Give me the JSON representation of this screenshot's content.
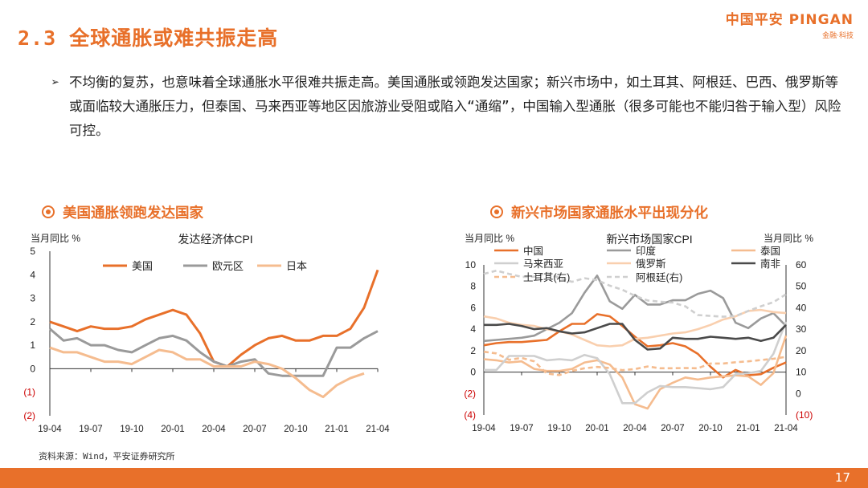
{
  "header": {
    "title": "2.3 全球通胀或难共振走高",
    "logo_main": "中国平安 PINGAN",
    "logo_sub": "金融·科技"
  },
  "body": {
    "bullet": "➢",
    "text": "不均衡的复苏，也意味着全球通胀水平很难共振走高。美国通胀或领跑发达国家；新兴市场中，如土耳其、阿根廷、巴西、俄罗斯等或面临较大通胀压力，但泰国、马来西亚等地区因旅游业受阻或陷入“通缩”，中国输入型通胀（很多可能也不能归咎于输入型）风险可控。"
  },
  "sections": {
    "left": "美国通胀领跑发达国家",
    "right": "新兴市场国家通胀水平出现分化"
  },
  "source": "资料来源：Wind，平安证券研究所",
  "footer": {
    "page": "17"
  },
  "colors": {
    "accent": "#e8702a",
    "grey": "#9a9a9a",
    "peach": "#f5bc8f",
    "dark": "#4a4a4a",
    "light_grey": "#cfcfcf",
    "light_peach": "#f9cfae"
  },
  "chart_data": [
    {
      "type": "line",
      "title": "发达经济体CPI",
      "ylabel": "当月同比 %",
      "ylim": [
        -2,
        5
      ],
      "yticks": [
        "5",
        "4",
        "3",
        "2",
        "1",
        "0",
        "(1)",
        "(2)"
      ],
      "xticks": [
        "19-04",
        "19-07",
        "19-10",
        "20-01",
        "20-04",
        "20-07",
        "20-10",
        "21-01",
        "21-04"
      ],
      "series": [
        {
          "name": "美国",
          "color": "#e8702a",
          "values": [
            2.0,
            1.8,
            1.6,
            1.8,
            1.7,
            1.7,
            1.8,
            2.1,
            2.3,
            2.5,
            2.3,
            1.5,
            0.3,
            0.1,
            0.6,
            1.0,
            1.3,
            1.4,
            1.2,
            1.2,
            1.4,
            1.4,
            1.7,
            2.6,
            4.2
          ]
        },
        {
          "name": "欧元区",
          "color": "#9a9a9a",
          "values": [
            1.7,
            1.2,
            1.3,
            1.0,
            1.0,
            0.8,
            0.7,
            1.0,
            1.3,
            1.4,
            1.2,
            0.7,
            0.3,
            0.1,
            0.3,
            0.4,
            -0.2,
            -0.3,
            -0.3,
            -0.3,
            -0.3,
            0.9,
            0.9,
            1.3,
            1.6
          ]
        },
        {
          "name": "日本",
          "color": "#f5bc8f",
          "values": [
            0.9,
            0.7,
            0.7,
            0.5,
            0.3,
            0.3,
            0.2,
            0.5,
            0.8,
            0.7,
            0.4,
            0.4,
            0.1,
            0.1,
            0.1,
            0.3,
            0.2,
            0.0,
            -0.4,
            -0.9,
            -1.2,
            -0.7,
            -0.4,
            -0.2,
            null
          ]
        }
      ]
    },
    {
      "type": "line",
      "title": "新兴市场国家CPI",
      "ylabel_left": "当月同比 %",
      "ylabel_right": "当月同比 %",
      "ylim_left": [
        -4,
        10
      ],
      "ylim_right": [
        -10,
        60
      ],
      "yticks_left": [
        "10",
        "8",
        "6",
        "4",
        "2",
        "0",
        "(2)",
        "(4)"
      ],
      "yticks_right": [
        "60",
        "50",
        "40",
        "30",
        "20",
        "10",
        "0",
        "(10)"
      ],
      "xticks": [
        "19-04",
        "19-07",
        "19-10",
        "20-01",
        "20-04",
        "20-07",
        "20-10",
        "21-01",
        "21-04"
      ],
      "series": [
        {
          "name": "中国",
          "axis": "left",
          "color": "#e8702a",
          "dash": false,
          "values": [
            2.5,
            2.7,
            2.8,
            2.8,
            2.9,
            3.0,
            3.8,
            4.5,
            4.5,
            5.4,
            5.2,
            4.3,
            3.3,
            2.4,
            2.5,
            2.7,
            2.4,
            1.7,
            0.5,
            -0.5,
            0.2,
            -0.3,
            -0.2,
            0.4,
            0.9
          ]
        },
        {
          "name": "印度",
          "axis": "left",
          "color": "#9a9a9a",
          "dash": false,
          "values": [
            2.9,
            3.0,
            3.1,
            3.2,
            3.4,
            4.0,
            4.6,
            5.5,
            7.4,
            9.0,
            6.6,
            5.9,
            7.2,
            6.3,
            6.3,
            6.7,
            6.7,
            7.3,
            7.6,
            6.9,
            4.6,
            4.1,
            5.0,
            5.5,
            4.3
          ]
        },
        {
          "name": "泰国",
          "axis": "left",
          "color": "#f5bc8f",
          "dash": false,
          "values": [
            1.2,
            1.1,
            0.9,
            1.0,
            0.3,
            0.1,
            0.1,
            0.3,
            0.9,
            1.1,
            0.7,
            -0.5,
            -3.0,
            -3.4,
            -1.6,
            -1.0,
            -0.5,
            -0.7,
            -0.5,
            -0.4,
            -0.3,
            -0.4,
            -1.2,
            -0.1,
            3.4
          ]
        },
        {
          "name": "马来西亚",
          "axis": "left",
          "color": "#cfcfcf",
          "dash": false,
          "values": [
            0.2,
            0.2,
            1.5,
            1.5,
            1.5,
            1.1,
            1.2,
            1.1,
            1.6,
            1.3,
            -0.2,
            -2.9,
            -2.9,
            -1.9,
            -1.3,
            -1.4,
            -1.4,
            -1.5,
            -1.6,
            -1.4,
            -0.2,
            -0.1,
            0.1,
            1.7,
            4.7
          ]
        },
        {
          "name": "俄罗斯",
          "axis": "left",
          "color": "#f9cfae",
          "dash": false,
          "values": [
            5.2,
            5.0,
            4.6,
            4.4,
            4.3,
            4.0,
            3.8,
            3.5,
            3.0,
            2.5,
            2.4,
            2.5,
            3.1,
            3.2,
            3.4,
            3.6,
            3.7,
            4.0,
            4.4,
            4.9,
            5.2,
            5.7,
            5.8,
            5.6,
            5.5
          ]
        },
        {
          "name": "南非",
          "axis": "left",
          "color": "#4a4a4a",
          "dash": false,
          "values": [
            4.4,
            4.4,
            4.5,
            4.3,
            4.0,
            4.1,
            3.8,
            3.6,
            3.7,
            4.1,
            4.5,
            4.5,
            3.0,
            2.1,
            2.2,
            3.2,
            3.1,
            3.1,
            3.3,
            3.2,
            3.1,
            3.2,
            2.9,
            3.2,
            4.4
          ]
        },
        {
          "name": "土耳其(右)",
          "axis": "right",
          "color": "#f5bc8f",
          "dash": true,
          "values": [
            19.5,
            18.7,
            15.7,
            16.6,
            15.0,
            9.3,
            8.6,
            10.6,
            11.8,
            12.4,
            11.9,
            10.9,
            11.4,
            12.6,
            11.8,
            11.8,
            11.9,
            11.8,
            14.0,
            14.0,
            14.6,
            15.0,
            15.6,
            16.2,
            17.1
          ]
        },
        {
          "name": "阿根廷(右)",
          "axis": "right",
          "color": "#cfcfcf",
          "dash": true,
          "values": [
            55.8,
            57.3,
            55.8,
            54.4,
            54.5,
            56.3,
            53.9,
            52.1,
            53.8,
            52.9,
            50.3,
            48.4,
            45.6,
            43.4,
            42.8,
            42.4,
            40.7,
            36.6,
            36.2,
            35.8,
            36.1,
            38.5,
            40.7,
            42.6,
            46.3
          ]
        }
      ]
    }
  ]
}
